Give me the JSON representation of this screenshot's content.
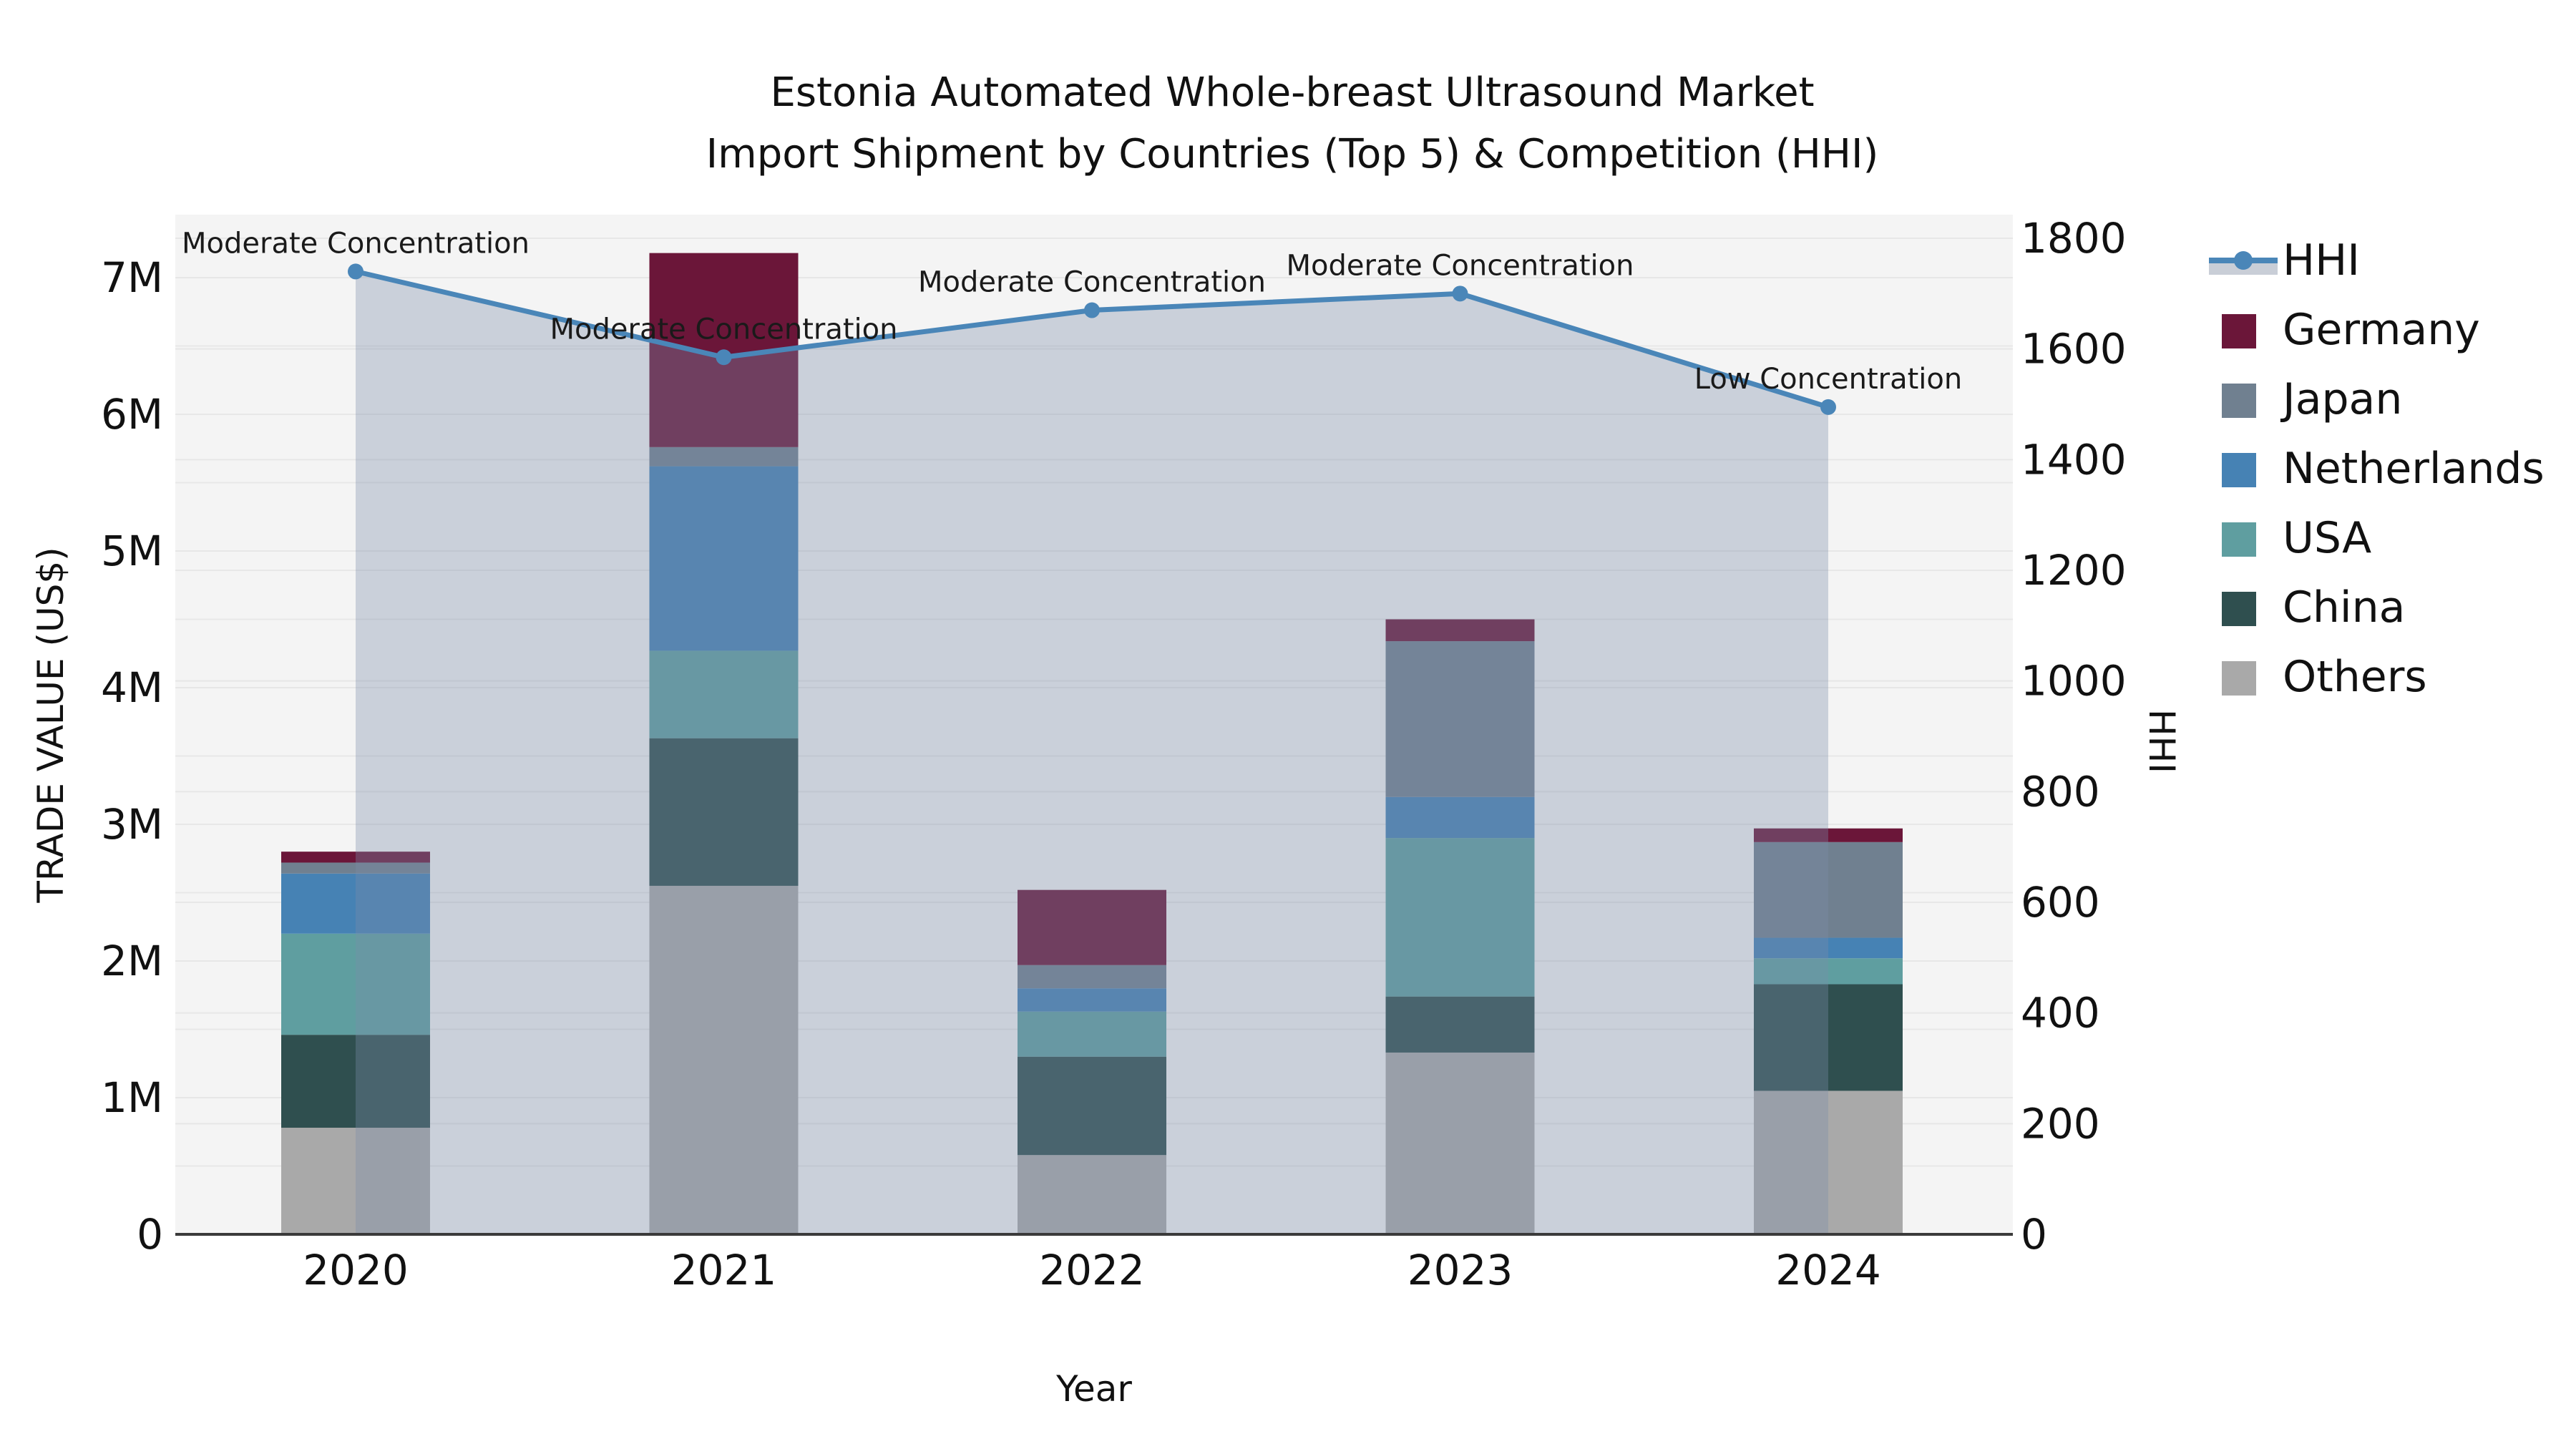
{
  "title": {
    "line1": "Estonia Automated Whole-breast Ultrasound Market",
    "line2": "Import Shipment by Countries (Top 5) & Competition (HHI)"
  },
  "axes": {
    "y_left_label": "TRADE VALUE (US$)",
    "x_label": "Year",
    "y_right_label": "HHI"
  },
  "colors": {
    "figure_bg": "#ffffff",
    "plot_bg": "#f4f4f4",
    "gridline": "#e7e7e7",
    "axis_spine": "#3a3a3a",
    "hhi_line": "#4a86b8",
    "hhi_area_fill": "rgba(122,139,168,0.35)",
    "legend_band": "#c9ced7"
  },
  "chart_data": {
    "type": "bar+line",
    "title": "Estonia Automated Whole-breast Ultrasound Market Import Shipment by Countries (Top 5) & Competition (HHI)",
    "xlabel": "Year",
    "ylabel_left": "TRADE VALUE (US$)",
    "ylabel_right": "HHI",
    "categories": [
      "2020",
      "2021",
      "2022",
      "2023",
      "2024"
    ],
    "bar_unit": "millions US$",
    "bar_stack_order_bottom_to_top": [
      "Others",
      "China",
      "USA",
      "Netherlands",
      "Japan",
      "Germany"
    ],
    "series": [
      {
        "name": "Others",
        "color": "#a9a9a9",
        "values": [
          0.78,
          2.55,
          0.58,
          1.33,
          1.05
        ]
      },
      {
        "name": "China",
        "color": "#2f4f4f",
        "values": [
          0.68,
          1.08,
          0.72,
          0.41,
          0.78
        ]
      },
      {
        "name": "USA",
        "color": "#5f9ea0",
        "values": [
          0.74,
          0.64,
          0.33,
          1.16,
          0.19
        ]
      },
      {
        "name": "Netherlands",
        "color": "#4682b4",
        "values": [
          0.44,
          1.35,
          0.17,
          0.3,
          0.15
        ]
      },
      {
        "name": "Japan",
        "color": "#708090",
        "values": [
          0.08,
          0.14,
          0.17,
          1.14,
          0.7
        ]
      },
      {
        "name": "Germany",
        "color": "#6b1639",
        "values": [
          0.08,
          1.42,
          0.55,
          0.16,
          0.1
        ]
      }
    ],
    "line_series": {
      "name": "HHI",
      "values": [
        1740,
        1585,
        1670,
        1700,
        1495
      ]
    },
    "annotations": [
      {
        "category": "2020",
        "text": "Moderate Concentration"
      },
      {
        "category": "2021",
        "text": "Moderate Concentration"
      },
      {
        "category": "2022",
        "text": "Moderate Concentration"
      },
      {
        "category": "2023",
        "text": "Moderate Concentration"
      },
      {
        "category": "2024",
        "text": "Low Concentration"
      }
    ],
    "y_left_ticks": [
      "0",
      "1M",
      "2M",
      "3M",
      "4M",
      "5M",
      "6M",
      "7M"
    ],
    "y_left_tick_values": [
      0,
      1,
      2,
      3,
      4,
      5,
      6,
      7
    ],
    "y_right_ticks": [
      "0",
      "200",
      "400",
      "600",
      "800",
      "1000",
      "1200",
      "1400",
      "1600",
      "1800"
    ],
    "y_right_tick_values": [
      0,
      200,
      400,
      600,
      800,
      1000,
      1200,
      1400,
      1600,
      1800
    ],
    "ylim_left_millions": [
      0,
      7.47
    ],
    "ylim_right": [
      0,
      1800
    ],
    "grid": "on",
    "legend_position": "outside-right",
    "legend_order": [
      "HHI",
      "Germany",
      "Japan",
      "Netherlands",
      "USA",
      "China",
      "Others"
    ]
  }
}
